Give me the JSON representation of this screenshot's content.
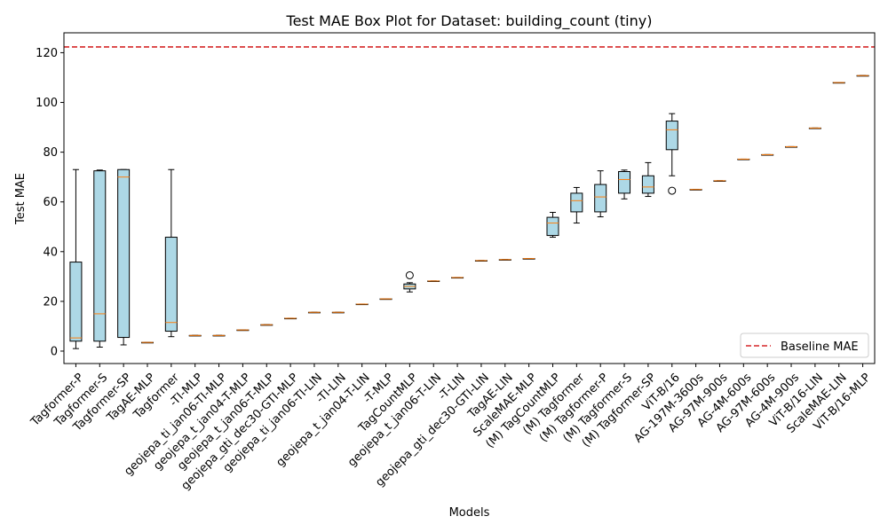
{
  "chart_data": {
    "type": "box",
    "title": "Test MAE Box Plot for Dataset: building_count (tiny)",
    "xlabel": "Models",
    "ylabel": "Test MAE",
    "ylim": [
      -5,
      128
    ],
    "yticks": [
      0,
      20,
      40,
      60,
      80,
      100,
      120
    ],
    "grid": false,
    "legend": {
      "position": "lower-right",
      "entries": [
        {
          "label": "Baseline MAE",
          "style": "dashed",
          "color": "#d62728"
        }
      ]
    },
    "reference_line": {
      "name": "Baseline MAE",
      "y": 122.3,
      "color": "#d62728"
    },
    "colors": {
      "box_fill": "#add8e6",
      "median": "#ff7f0e",
      "baseline": "#d62728"
    },
    "boxes": [
      {
        "label": "Tagformer-P",
        "whislo": 1.0,
        "q1": 4.0,
        "med": 5.3,
        "q3": 35.8,
        "whishi": 73.0,
        "fliers": []
      },
      {
        "label": "Tagformer-S",
        "whislo": 1.6,
        "q1": 4.0,
        "med": 15.0,
        "q3": 72.5,
        "whishi": 72.8,
        "fliers": []
      },
      {
        "label": "Tagformer-SP",
        "whislo": 2.5,
        "q1": 5.5,
        "med": 70.0,
        "q3": 73.0,
        "whishi": 73.0,
        "fliers": []
      },
      {
        "label": "TagAE-MLP",
        "whislo": 3.5,
        "q1": 3.5,
        "med": 3.5,
        "q3": 3.5,
        "whishi": 3.5,
        "fliers": []
      },
      {
        "label": "Tagformer",
        "whislo": 5.8,
        "q1": 8.0,
        "med": 11.5,
        "q3": 45.8,
        "whishi": 73.0,
        "fliers": []
      },
      {
        "label": "-TI-MLP",
        "whislo": 6.3,
        "q1": 6.3,
        "med": 6.3,
        "q3": 6.3,
        "whishi": 6.3,
        "fliers": []
      },
      {
        "label": "geojepa_ti_jan06-TI-MLP",
        "whislo": 6.3,
        "q1": 6.3,
        "med": 6.3,
        "q3": 6.3,
        "whishi": 6.3,
        "fliers": []
      },
      {
        "label": "geojepa_t_jan04-T-MLP",
        "whislo": 8.5,
        "q1": 8.5,
        "med": 8.5,
        "q3": 8.5,
        "whishi": 8.5,
        "fliers": []
      },
      {
        "label": "geojepa_t_jan06-T-MLP",
        "whislo": 10.6,
        "q1": 10.6,
        "med": 10.6,
        "q3": 10.6,
        "whishi": 10.6,
        "fliers": []
      },
      {
        "label": "geojepa_gti_dec30-GTI-MLP",
        "whislo": 13.2,
        "q1": 13.2,
        "med": 13.2,
        "q3": 13.2,
        "whishi": 13.2,
        "fliers": []
      },
      {
        "label": "geojepa_ti_jan06-TI-LIN",
        "whislo": 15.6,
        "q1": 15.6,
        "med": 15.6,
        "q3": 15.6,
        "whishi": 15.6,
        "fliers": []
      },
      {
        "label": "-TI-LIN",
        "whislo": 15.6,
        "q1": 15.6,
        "med": 15.6,
        "q3": 15.6,
        "whishi": 15.6,
        "fliers": []
      },
      {
        "label": "geojepa_t_jan04-T-LIN",
        "whislo": 18.9,
        "q1": 18.9,
        "med": 18.9,
        "q3": 18.9,
        "whishi": 18.9,
        "fliers": []
      },
      {
        "label": "-T-MLP",
        "whislo": 21.0,
        "q1": 21.0,
        "med": 21.0,
        "q3": 21.0,
        "whishi": 21.0,
        "fliers": []
      },
      {
        "label": "TagCountMLP",
        "whislo": 23.8,
        "q1": 25.0,
        "med": 26.0,
        "q3": 27.0,
        "whishi": 27.5,
        "fliers": [
          30.5
        ]
      },
      {
        "label": "geojepa_t_jan06-T-LIN",
        "whislo": 28.2,
        "q1": 28.2,
        "med": 28.2,
        "q3": 28.2,
        "whishi": 28.2,
        "fliers": []
      },
      {
        "label": "-T-LIN",
        "whislo": 29.6,
        "q1": 29.6,
        "med": 29.6,
        "q3": 29.6,
        "whishi": 29.6,
        "fliers": []
      },
      {
        "label": "geojepa_gti_dec30-GTI-LIN",
        "whislo": 36.4,
        "q1": 36.4,
        "med": 36.4,
        "q3": 36.4,
        "whishi": 36.4,
        "fliers": []
      },
      {
        "label": "TagAE-LIN",
        "whislo": 36.8,
        "q1": 36.8,
        "med": 36.8,
        "q3": 36.8,
        "whishi": 36.8,
        "fliers": []
      },
      {
        "label": "ScaleMAE-MLP",
        "whislo": 37.2,
        "q1": 37.2,
        "med": 37.2,
        "q3": 37.2,
        "whishi": 37.2,
        "fliers": []
      },
      {
        "label": "(M) TagCountMLP",
        "whislo": 45.8,
        "q1": 46.5,
        "med": 51.5,
        "q3": 53.8,
        "whishi": 55.8,
        "fliers": []
      },
      {
        "label": "(M) Tagformer",
        "whislo": 51.5,
        "q1": 56.0,
        "med": 60.5,
        "q3": 63.5,
        "whishi": 65.8,
        "fliers": []
      },
      {
        "label": "(M) Tagformer-P",
        "whislo": 54.0,
        "q1": 56.0,
        "med": 62.0,
        "q3": 67.0,
        "whishi": 72.5,
        "fliers": []
      },
      {
        "label": "(M) Tagformer-S",
        "whislo": 61.2,
        "q1": 63.5,
        "med": 69.0,
        "q3": 72.2,
        "whishi": 72.8,
        "fliers": []
      },
      {
        "label": "(M) Tagformer-SP",
        "whislo": 62.2,
        "q1": 63.5,
        "med": 66.0,
        "q3": 70.5,
        "whishi": 75.8,
        "fliers": []
      },
      {
        "label": "ViT-B/16",
        "whislo": 70.5,
        "q1": 81.0,
        "med": 89.0,
        "q3": 92.5,
        "whishi": 95.5,
        "fliers": [
          64.5
        ]
      },
      {
        "label": "AG-197M-3600s",
        "whislo": 65.0,
        "q1": 65.0,
        "med": 65.0,
        "q3": 65.0,
        "whishi": 65.0,
        "fliers": []
      },
      {
        "label": "AG-97M-900s",
        "whislo": 68.5,
        "q1": 68.5,
        "med": 68.5,
        "q3": 68.5,
        "whishi": 68.5,
        "fliers": []
      },
      {
        "label": "AG-4M-600s",
        "whislo": 77.2,
        "q1": 77.2,
        "med": 77.2,
        "q3": 77.2,
        "whishi": 77.2,
        "fliers": []
      },
      {
        "label": "AG-97M-600s",
        "whislo": 79.0,
        "q1": 79.0,
        "med": 79.0,
        "q3": 79.0,
        "whishi": 79.0,
        "fliers": []
      },
      {
        "label": "AG-4M-900s",
        "whislo": 82.2,
        "q1": 82.2,
        "med": 82.2,
        "q3": 82.2,
        "whishi": 82.2,
        "fliers": []
      },
      {
        "label": "ViT-B/16-LIN",
        "whislo": 89.7,
        "q1": 89.7,
        "med": 89.7,
        "q3": 89.7,
        "whishi": 89.7,
        "fliers": []
      },
      {
        "label": "ScaleMAE-LIN",
        "whislo": 108.0,
        "q1": 108.0,
        "med": 108.0,
        "q3": 108.0,
        "whishi": 108.0,
        "fliers": []
      },
      {
        "label": "ViT-B/16-MLP",
        "whislo": 110.8,
        "q1": 110.8,
        "med": 110.8,
        "q3": 110.8,
        "whishi": 110.8,
        "fliers": []
      }
    ]
  }
}
